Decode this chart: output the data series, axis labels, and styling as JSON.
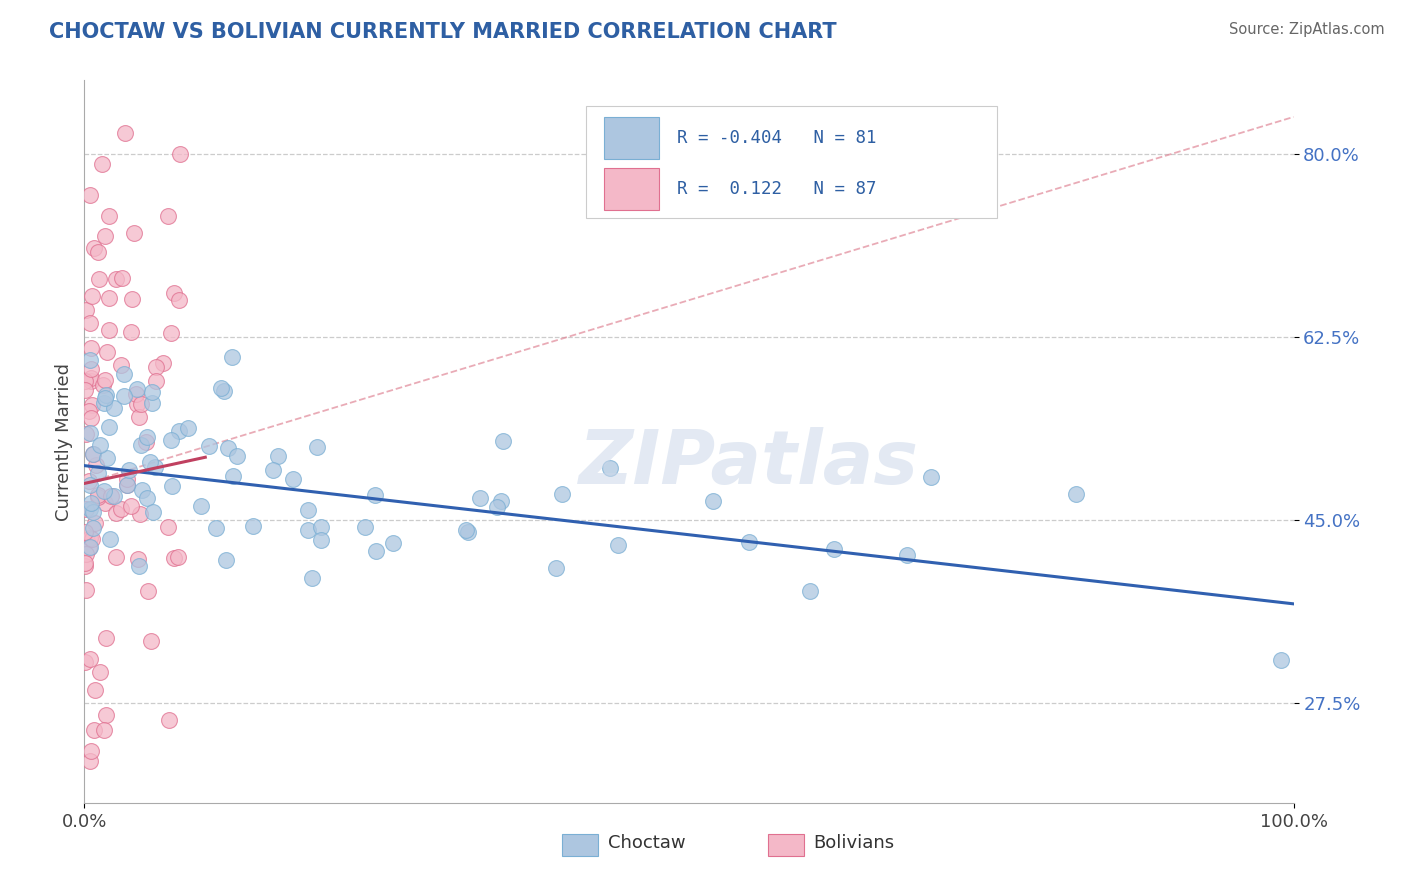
{
  "title": "CHOCTAW VS BOLIVIAN CURRENTLY MARRIED CORRELATION CHART",
  "source_text": "Source: ZipAtlas.com",
  "ylabel": "Currently Married",
  "xlim": [
    0.0,
    1.0
  ],
  "ylim": [
    0.18,
    0.87
  ],
  "xtick_positions": [
    0.0,
    1.0
  ],
  "xtick_labels": [
    "0.0%",
    "100.0%"
  ],
  "ytick_positions": [
    0.275,
    0.45,
    0.625,
    0.8
  ],
  "ytick_labels": [
    "27.5%",
    "45.0%",
    "62.5%",
    "80.0%"
  ],
  "legend_r_choctaw": "-0.404",
  "legend_n_choctaw": "81",
  "legend_r_bolivian": "0.122",
  "legend_n_bolivian": "87",
  "choctaw_color": "#adc6e0",
  "choctaw_edge": "#7aafd4",
  "bolivian_color": "#f4b8c8",
  "bolivian_edge": "#e07090",
  "trendline_choctaw_color": "#3060b0",
  "trendline_bolivian_color": "#c04060",
  "trendline_choctaw_start_x": 0.0,
  "trendline_choctaw_start_y": 0.502,
  "trendline_choctaw_end_x": 1.0,
  "trendline_choctaw_end_y": 0.37,
  "trendline_bolivian_start_x": 0.0,
  "trendline_bolivian_start_y": 0.485,
  "trendline_bolivian_end_x": 0.1,
  "trendline_bolivian_end_y": 0.51,
  "dashed_line_color": "#e08898",
  "dashed_line_start_x": 0.0,
  "dashed_line_start_y": 0.485,
  "dashed_line_end_x": 1.0,
  "dashed_line_end_y": 0.835,
  "watermark": "ZIPatlas",
  "ytick_color": "#4472c4",
  "title_color": "#2E5FA3",
  "source_color": "#666666",
  "bottom_legend_choctaw": "Choctaw",
  "bottom_legend_bolivian": "Bolivians"
}
